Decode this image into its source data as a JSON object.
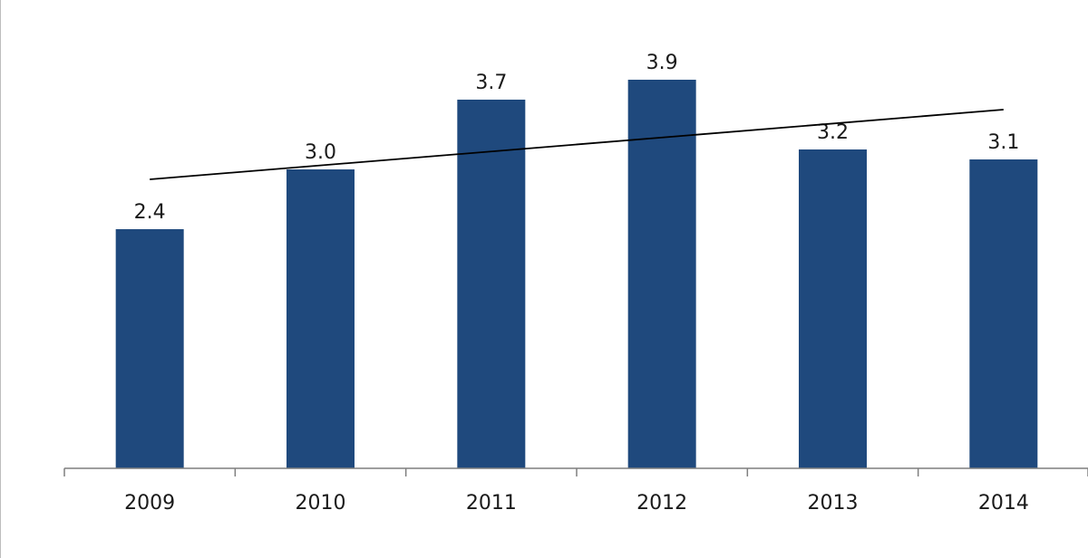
{
  "chart_data": {
    "type": "bar",
    "categories": [
      "2009",
      "2010",
      "2011",
      "2012",
      "2013",
      "2014"
    ],
    "values": [
      2.4,
      3.0,
      3.7,
      3.9,
      3.2,
      3.1
    ],
    "value_labels": [
      "2.4",
      "3.0",
      "3.7",
      "3.9",
      "3.2",
      "3.1"
    ],
    "ylim": [
      0,
      4.4
    ],
    "trendline": {
      "type": "linear",
      "start": 2.9,
      "end": 3.6
    },
    "grid": false,
    "legend": "none",
    "title": "",
    "xlabel": "",
    "ylabel": ""
  },
  "colors": {
    "bar": "#1f497d",
    "axis": "#7f7f7f",
    "trendline": "#000000",
    "label": "#1a1a1a"
  }
}
